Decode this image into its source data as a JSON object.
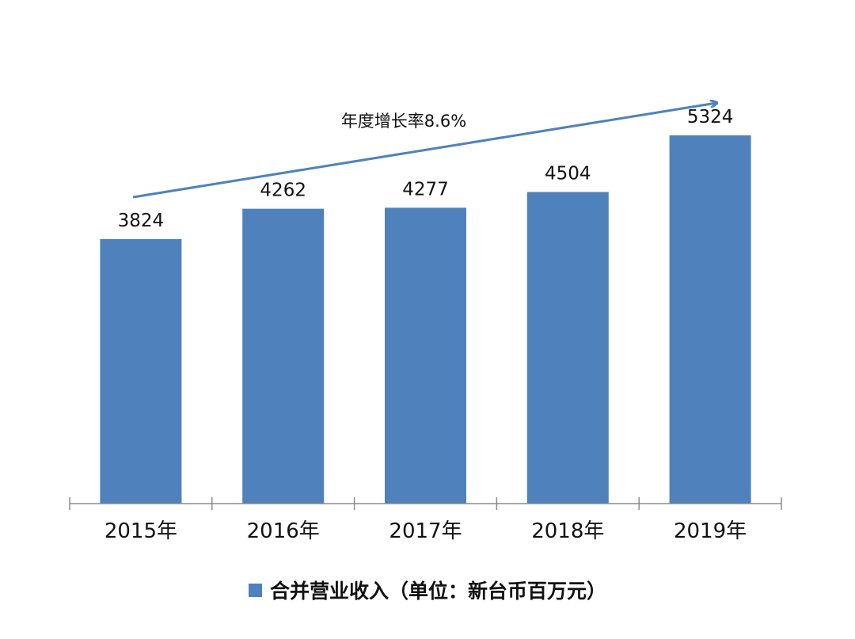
{
  "chart_data": {
    "type": "bar",
    "categories": [
      "2015年",
      "2016年",
      "2017年",
      "2018年",
      "2019年"
    ],
    "series": [
      {
        "name": "合并营业收入（单位：新台币百万元）",
        "values": [
          3824,
          4262,
          4277,
          4504,
          5324
        ]
      }
    ],
    "data_labels": [
      "3824",
      "4262",
      "4277",
      "4504",
      "5324"
    ],
    "annotation": "年度增长率8.6%",
    "ylim": [
      0,
      5700
    ],
    "grid": false,
    "legend_position": "bottom",
    "colors": {
      "bar": "#4F81BD",
      "arrow": "#4F81BD",
      "axis": "#8c8c8c"
    }
  }
}
